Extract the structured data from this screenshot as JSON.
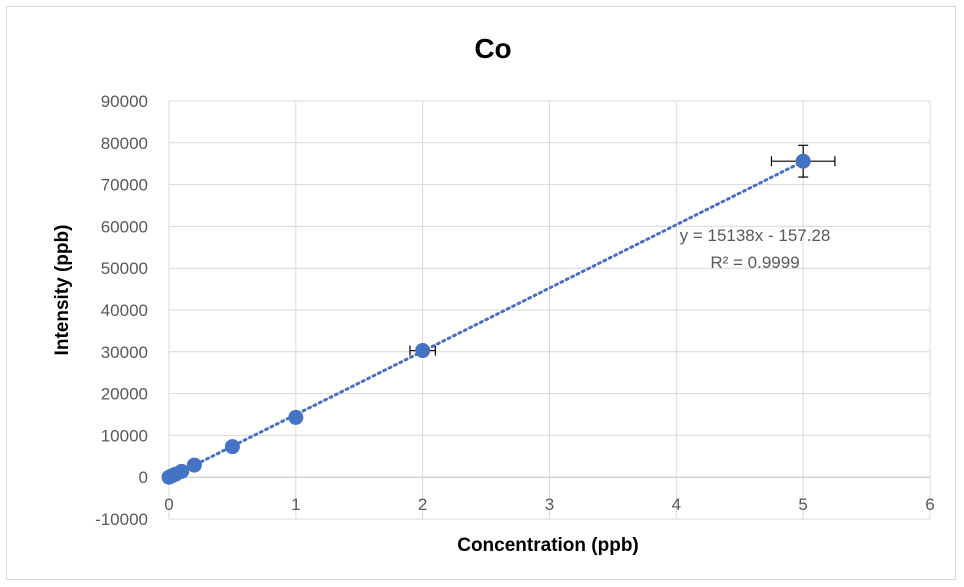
{
  "chart_data": {
    "type": "scatter",
    "title": "Co",
    "xlabel": "Concentration (ppb)",
    "ylabel": "Intensity (ppb)",
    "xlim": [
      0,
      6
    ],
    "ylim": [
      -10000,
      90000
    ],
    "x_ticks": [
      0,
      1,
      2,
      3,
      4,
      5,
      6
    ],
    "y_ticks": [
      -10000,
      0,
      10000,
      20000,
      30000,
      40000,
      50000,
      60000,
      70000,
      80000,
      90000
    ],
    "grid": true,
    "series": [
      {
        "color": "#4472c4",
        "points": [
          {
            "x": 0,
            "y": 0
          },
          {
            "x": 0.02,
            "y": 300
          },
          {
            "x": 0.05,
            "y": 700
          },
          {
            "x": 0.1,
            "y": 1400
          },
          {
            "x": 0.2,
            "y": 2900
          },
          {
            "x": 0.5,
            "y": 7300
          },
          {
            "x": 1,
            "y": 14300
          },
          {
            "x": 2,
            "y": 30300,
            "x_err": 0.1,
            "y_err": 0
          },
          {
            "x": 5,
            "y": 75600,
            "x_err": 0.25,
            "y_err": 3800
          }
        ]
      }
    ],
    "trendline": {
      "type": "linear",
      "slope": 15138,
      "intercept": -157.28,
      "style": "dotted",
      "color": "#4472c4",
      "equation_label": "y = 15138x - 157.28",
      "r2_label": "R² = 0.9999"
    }
  }
}
